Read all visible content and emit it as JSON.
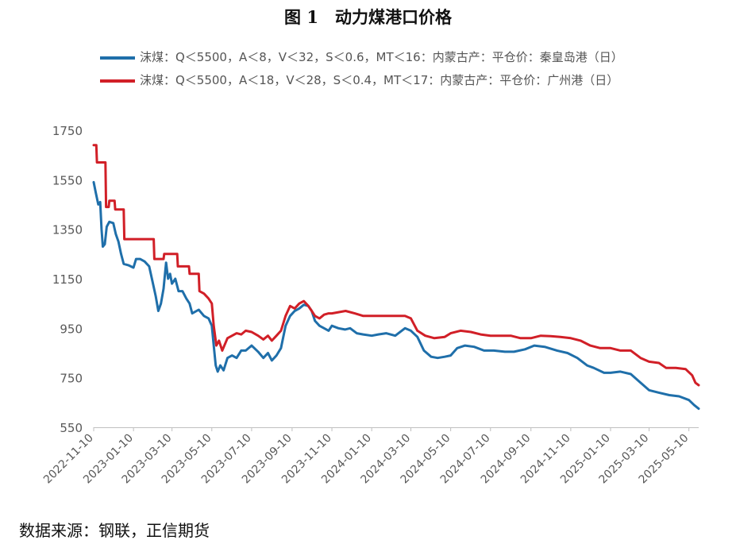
{
  "title": "图 1　动力煤港口价格",
  "source": "数据来源：钢联，正信期货",
  "chart_data": {
    "type": "line",
    "ylim": [
      550,
      1750
    ],
    "yticks": [
      550,
      750,
      950,
      1150,
      1350,
      1550,
      1750
    ],
    "xlim": [
      "2022-11-10",
      "2025-05-25"
    ],
    "xticks": [
      "2022-11-10",
      "2023-01-10",
      "2023-03-10",
      "2023-05-10",
      "2023-07-10",
      "2023-09-10",
      "2023-11-10",
      "2024-01-10",
      "2024-03-10",
      "2024-05-10",
      "2024-07-10",
      "2024-09-10",
      "2024-11-10",
      "2025-01-10",
      "2025-03-10",
      "2025-05-10"
    ],
    "grid": false,
    "legend_position": "top",
    "series": [
      {
        "name": "沫煤：Q＜5500，A＜8，V＜32，S＜0.6，MT＜16：内蒙古产：平仓价：秦皇岛港（日）",
        "color": "#1f6faa",
        "points": [
          [
            "2022-11-10",
            1540
          ],
          [
            "2022-11-13",
            1500
          ],
          [
            "2022-11-17",
            1450
          ],
          [
            "2022-11-20",
            1460
          ],
          [
            "2022-11-22",
            1350
          ],
          [
            "2022-11-24",
            1280
          ],
          [
            "2022-11-27",
            1290
          ],
          [
            "2022-11-30",
            1360
          ],
          [
            "2022-12-04",
            1380
          ],
          [
            "2022-12-10",
            1375
          ],
          [
            "2022-12-14",
            1330
          ],
          [
            "2022-12-18",
            1300
          ],
          [
            "2022-12-22",
            1250
          ],
          [
            "2022-12-26",
            1210
          ],
          [
            "2023-01-02",
            1205
          ],
          [
            "2023-01-10",
            1195
          ],
          [
            "2023-01-14",
            1230
          ],
          [
            "2023-01-20",
            1230
          ],
          [
            "2023-01-27",
            1220
          ],
          [
            "2023-02-03",
            1200
          ],
          [
            "2023-02-08",
            1140
          ],
          [
            "2023-02-13",
            1080
          ],
          [
            "2023-02-17",
            1020
          ],
          [
            "2023-02-21",
            1050
          ],
          [
            "2023-02-25",
            1110
          ],
          [
            "2023-03-01",
            1215
          ],
          [
            "2023-03-04",
            1150
          ],
          [
            "2023-03-07",
            1170
          ],
          [
            "2023-03-10",
            1130
          ],
          [
            "2023-03-15",
            1150
          ],
          [
            "2023-03-20",
            1100
          ],
          [
            "2023-03-26",
            1100
          ],
          [
            "2023-04-01",
            1070
          ],
          [
            "2023-04-06",
            1050
          ],
          [
            "2023-04-10",
            1010
          ],
          [
            "2023-04-20",
            1025
          ],
          [
            "2023-04-28",
            1000
          ],
          [
            "2023-05-05",
            990
          ],
          [
            "2023-05-10",
            960
          ],
          [
            "2023-05-13",
            880
          ],
          [
            "2023-05-16",
            800
          ],
          [
            "2023-05-19",
            775
          ],
          [
            "2023-05-23",
            800
          ],
          [
            "2023-05-28",
            780
          ],
          [
            "2023-06-03",
            830
          ],
          [
            "2023-06-10",
            840
          ],
          [
            "2023-06-17",
            830
          ],
          [
            "2023-06-24",
            860
          ],
          [
            "2023-07-01",
            860
          ],
          [
            "2023-07-10",
            880
          ],
          [
            "2023-07-20",
            855
          ],
          [
            "2023-07-28",
            830
          ],
          [
            "2023-08-04",
            850
          ],
          [
            "2023-08-10",
            820
          ],
          [
            "2023-08-17",
            840
          ],
          [
            "2023-08-24",
            870
          ],
          [
            "2023-08-31",
            960
          ],
          [
            "2023-09-07",
            1000
          ],
          [
            "2023-09-14",
            1020
          ],
          [
            "2023-09-21",
            1030
          ],
          [
            "2023-09-28",
            1045
          ],
          [
            "2023-10-05",
            1040
          ],
          [
            "2023-10-10",
            1020
          ],
          [
            "2023-10-15",
            980
          ],
          [
            "2023-10-22",
            960
          ],
          [
            "2023-10-29",
            950
          ],
          [
            "2023-11-05",
            940
          ],
          [
            "2023-11-10",
            960
          ],
          [
            "2023-11-20",
            950
          ],
          [
            "2023-11-30",
            945
          ],
          [
            "2023-12-08",
            950
          ],
          [
            "2023-12-18",
            930
          ],
          [
            "2023-12-28",
            925
          ],
          [
            "2024-01-10",
            920
          ],
          [
            "2024-01-20",
            925
          ],
          [
            "2024-02-01",
            930
          ],
          [
            "2024-02-15",
            920
          ],
          [
            "2024-03-01",
            950
          ],
          [
            "2024-03-10",
            940
          ],
          [
            "2024-03-20",
            915
          ],
          [
            "2024-03-30",
            860
          ],
          [
            "2024-04-10",
            835
          ],
          [
            "2024-04-20",
            830
          ],
          [
            "2024-05-01",
            835
          ],
          [
            "2024-05-10",
            840
          ],
          [
            "2024-05-20",
            870
          ],
          [
            "2024-06-01",
            880
          ],
          [
            "2024-06-15",
            875
          ],
          [
            "2024-06-30",
            860
          ],
          [
            "2024-07-15",
            860
          ],
          [
            "2024-08-01",
            855
          ],
          [
            "2024-08-15",
            855
          ],
          [
            "2024-09-01",
            865
          ],
          [
            "2024-09-15",
            880
          ],
          [
            "2024-10-01",
            875
          ],
          [
            "2024-10-20",
            860
          ],
          [
            "2024-11-05",
            850
          ],
          [
            "2024-11-20",
            830
          ],
          [
            "2024-12-05",
            800
          ],
          [
            "2024-12-15",
            790
          ],
          [
            "2024-12-31",
            770
          ],
          [
            "2025-01-10",
            770
          ],
          [
            "2025-01-25",
            775
          ],
          [
            "2025-02-10",
            765
          ],
          [
            "2025-02-25",
            730
          ],
          [
            "2025-03-10",
            700
          ],
          [
            "2025-03-25",
            690
          ],
          [
            "2025-04-10",
            680
          ],
          [
            "2025-04-25",
            675
          ],
          [
            "2025-05-10",
            660
          ],
          [
            "2025-05-18",
            640
          ],
          [
            "2025-05-25",
            625
          ]
        ]
      },
      {
        "name": "沫煤：Q＜5500，A＜18，V＜28，S＜0.4，MT＜17：内蒙古产：平仓价：广州港（日）",
        "color": "#d11f27",
        "points": [
          [
            "2022-11-10",
            1690
          ],
          [
            "2022-11-14",
            1690
          ],
          [
            "2022-11-15",
            1620
          ],
          [
            "2022-11-28",
            1620
          ],
          [
            "2022-11-29",
            1440
          ],
          [
            "2022-12-03",
            1440
          ],
          [
            "2022-12-04",
            1465
          ],
          [
            "2022-12-12",
            1465
          ],
          [
            "2022-12-13",
            1430
          ],
          [
            "2022-12-26",
            1430
          ],
          [
            "2022-12-27",
            1310
          ],
          [
            "2023-02-10",
            1310
          ],
          [
            "2023-02-11",
            1230
          ],
          [
            "2023-02-25",
            1230
          ],
          [
            "2023-02-26",
            1250
          ],
          [
            "2023-03-18",
            1250
          ],
          [
            "2023-03-19",
            1200
          ],
          [
            "2023-04-05",
            1200
          ],
          [
            "2023-04-06",
            1170
          ],
          [
            "2023-04-20",
            1170
          ],
          [
            "2023-04-21",
            1100
          ],
          [
            "2023-04-28",
            1090
          ],
          [
            "2023-05-05",
            1070
          ],
          [
            "2023-05-10",
            1050
          ],
          [
            "2023-05-13",
            960
          ],
          [
            "2023-05-17",
            880
          ],
          [
            "2023-05-21",
            900
          ],
          [
            "2023-05-26",
            860
          ],
          [
            "2023-06-03",
            910
          ],
          [
            "2023-06-10",
            920
          ],
          [
            "2023-06-17",
            930
          ],
          [
            "2023-06-24",
            925
          ],
          [
            "2023-07-01",
            940
          ],
          [
            "2023-07-10",
            935
          ],
          [
            "2023-07-20",
            920
          ],
          [
            "2023-07-28",
            905
          ],
          [
            "2023-08-04",
            920
          ],
          [
            "2023-08-10",
            900
          ],
          [
            "2023-08-17",
            920
          ],
          [
            "2023-08-24",
            940
          ],
          [
            "2023-08-31",
            1000
          ],
          [
            "2023-09-07",
            1040
          ],
          [
            "2023-09-14",
            1030
          ],
          [
            "2023-09-21",
            1050
          ],
          [
            "2023-09-28",
            1060
          ],
          [
            "2023-10-05",
            1040
          ],
          [
            "2023-10-10",
            1020
          ],
          [
            "2023-10-15",
            1000
          ],
          [
            "2023-10-22",
            990
          ],
          [
            "2023-10-29",
            1005
          ],
          [
            "2023-11-05",
            1010
          ],
          [
            "2023-11-10",
            1010
          ],
          [
            "2023-11-20",
            1015
          ],
          [
            "2023-12-01",
            1020
          ],
          [
            "2023-12-15",
            1010
          ],
          [
            "2023-12-28",
            1000
          ],
          [
            "2024-01-10",
            1000
          ],
          [
            "2024-01-25",
            1000
          ],
          [
            "2024-02-15",
            1000
          ],
          [
            "2024-03-01",
            1000
          ],
          [
            "2024-03-10",
            990
          ],
          [
            "2024-03-20",
            940
          ],
          [
            "2024-04-01",
            920
          ],
          [
            "2024-04-15",
            910
          ],
          [
            "2024-05-01",
            915
          ],
          [
            "2024-05-10",
            930
          ],
          [
            "2024-05-25",
            940
          ],
          [
            "2024-06-10",
            935
          ],
          [
            "2024-06-25",
            925
          ],
          [
            "2024-07-10",
            920
          ],
          [
            "2024-07-25",
            920
          ],
          [
            "2024-08-10",
            920
          ],
          [
            "2024-08-25",
            910
          ],
          [
            "2024-09-10",
            910
          ],
          [
            "2024-09-25",
            920
          ],
          [
            "2024-10-10",
            918
          ],
          [
            "2024-10-25",
            915
          ],
          [
            "2024-11-10",
            910
          ],
          [
            "2024-11-25",
            900
          ],
          [
            "2024-12-10",
            880
          ],
          [
            "2024-12-25",
            870
          ],
          [
            "2025-01-10",
            870
          ],
          [
            "2025-01-25",
            860
          ],
          [
            "2025-02-10",
            860
          ],
          [
            "2025-02-25",
            830
          ],
          [
            "2025-03-10",
            815
          ],
          [
            "2025-03-25",
            810
          ],
          [
            "2025-04-05",
            790
          ],
          [
            "2025-04-20",
            790
          ],
          [
            "2025-05-05",
            785
          ],
          [
            "2025-05-15",
            760
          ],
          [
            "2025-05-20",
            730
          ],
          [
            "2025-05-25",
            720
          ]
        ]
      }
    ]
  }
}
